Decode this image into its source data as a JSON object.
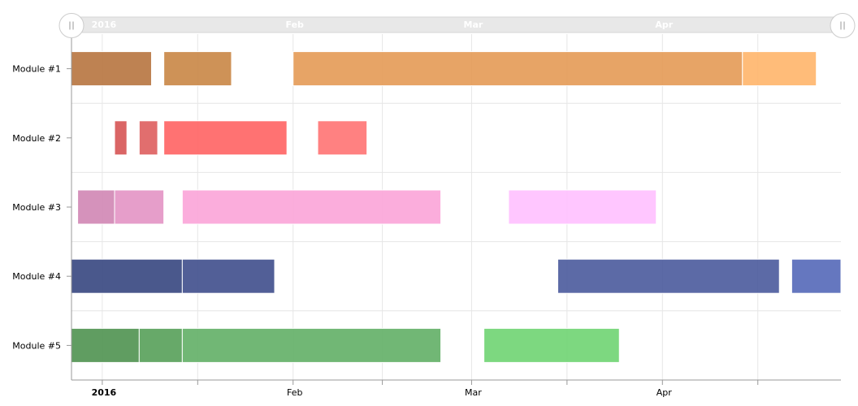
{
  "chart_data": {
    "type": "gantt",
    "title": "",
    "xlabel": "",
    "ylabel": "",
    "x_range": [
      "2015-12-27",
      "2016-04-30"
    ],
    "categories": [
      "Module #1",
      "Module #2",
      "Module #3",
      "Module #4",
      "Module #5"
    ],
    "ticks": [
      {
        "date": "2016-01-01",
        "label": "2016",
        "bold": true
      },
      {
        "date": "2016-02-01",
        "label": "Feb",
        "bold": false
      },
      {
        "date": "2016-03-01",
        "label": "Mar",
        "bold": false
      },
      {
        "date": "2016-04-01",
        "label": "Apr",
        "bold": false
      }
    ],
    "grid": true,
    "scrollbar": true,
    "series": [
      {
        "category": "Module #1",
        "segments": [
          {
            "start": "2015-12-27",
            "end": "2016-01-09",
            "color": "#b7743f"
          },
          {
            "start": "2016-01-11",
            "end": "2016-01-22",
            "color": "#c98645"
          },
          {
            "start": "2016-02-01",
            "end": "2016-04-14",
            "color": "#e49a55"
          },
          {
            "start": "2016-04-14",
            "end": "2016-04-26",
            "color": "#ffb56a"
          }
        ]
      },
      {
        "category": "Module #2",
        "segments": [
          {
            "start": "2016-01-03",
            "end": "2016-01-05",
            "color": "#d65454"
          },
          {
            "start": "2016-01-07",
            "end": "2016-01-10",
            "color": "#de5e5e"
          },
          {
            "start": "2016-01-11",
            "end": "2016-01-31",
            "color": "#ff6363"
          },
          {
            "start": "2016-02-05",
            "end": "2016-02-13",
            "color": "#ff7373"
          }
        ]
      },
      {
        "category": "Module #3",
        "segments": [
          {
            "start": "2015-12-28",
            "end": "2016-01-03",
            "color": "#d086b4"
          },
          {
            "start": "2016-01-03",
            "end": "2016-01-11",
            "color": "#e394c4"
          },
          {
            "start": "2016-01-14",
            "end": "2016-02-25",
            "color": "#fba4d8"
          },
          {
            "start": "2016-03-07",
            "end": "2016-03-31",
            "color": "#ffc0ff"
          }
        ]
      },
      {
        "category": "Module #4",
        "segments": [
          {
            "start": "2015-12-27",
            "end": "2016-01-14",
            "color": "#364680"
          },
          {
            "start": "2016-01-14",
            "end": "2016-01-29",
            "color": "#3f4e8c"
          },
          {
            "start": "2016-03-15",
            "end": "2016-04-20",
            "color": "#4a5a9c"
          },
          {
            "start": "2016-04-22",
            "end": "2016-04-30",
            "color": "#5468b8"
          }
        ]
      },
      {
        "category": "Module #5",
        "segments": [
          {
            "start": "2015-12-27",
            "end": "2016-01-07",
            "color": "#4f9250"
          },
          {
            "start": "2016-01-07",
            "end": "2016-01-14",
            "color": "#57a059"
          },
          {
            "start": "2016-01-14",
            "end": "2016-02-25",
            "color": "#62af66"
          },
          {
            "start": "2016-03-03",
            "end": "2016-03-25",
            "color": "#6fd472"
          }
        ]
      }
    ]
  }
}
